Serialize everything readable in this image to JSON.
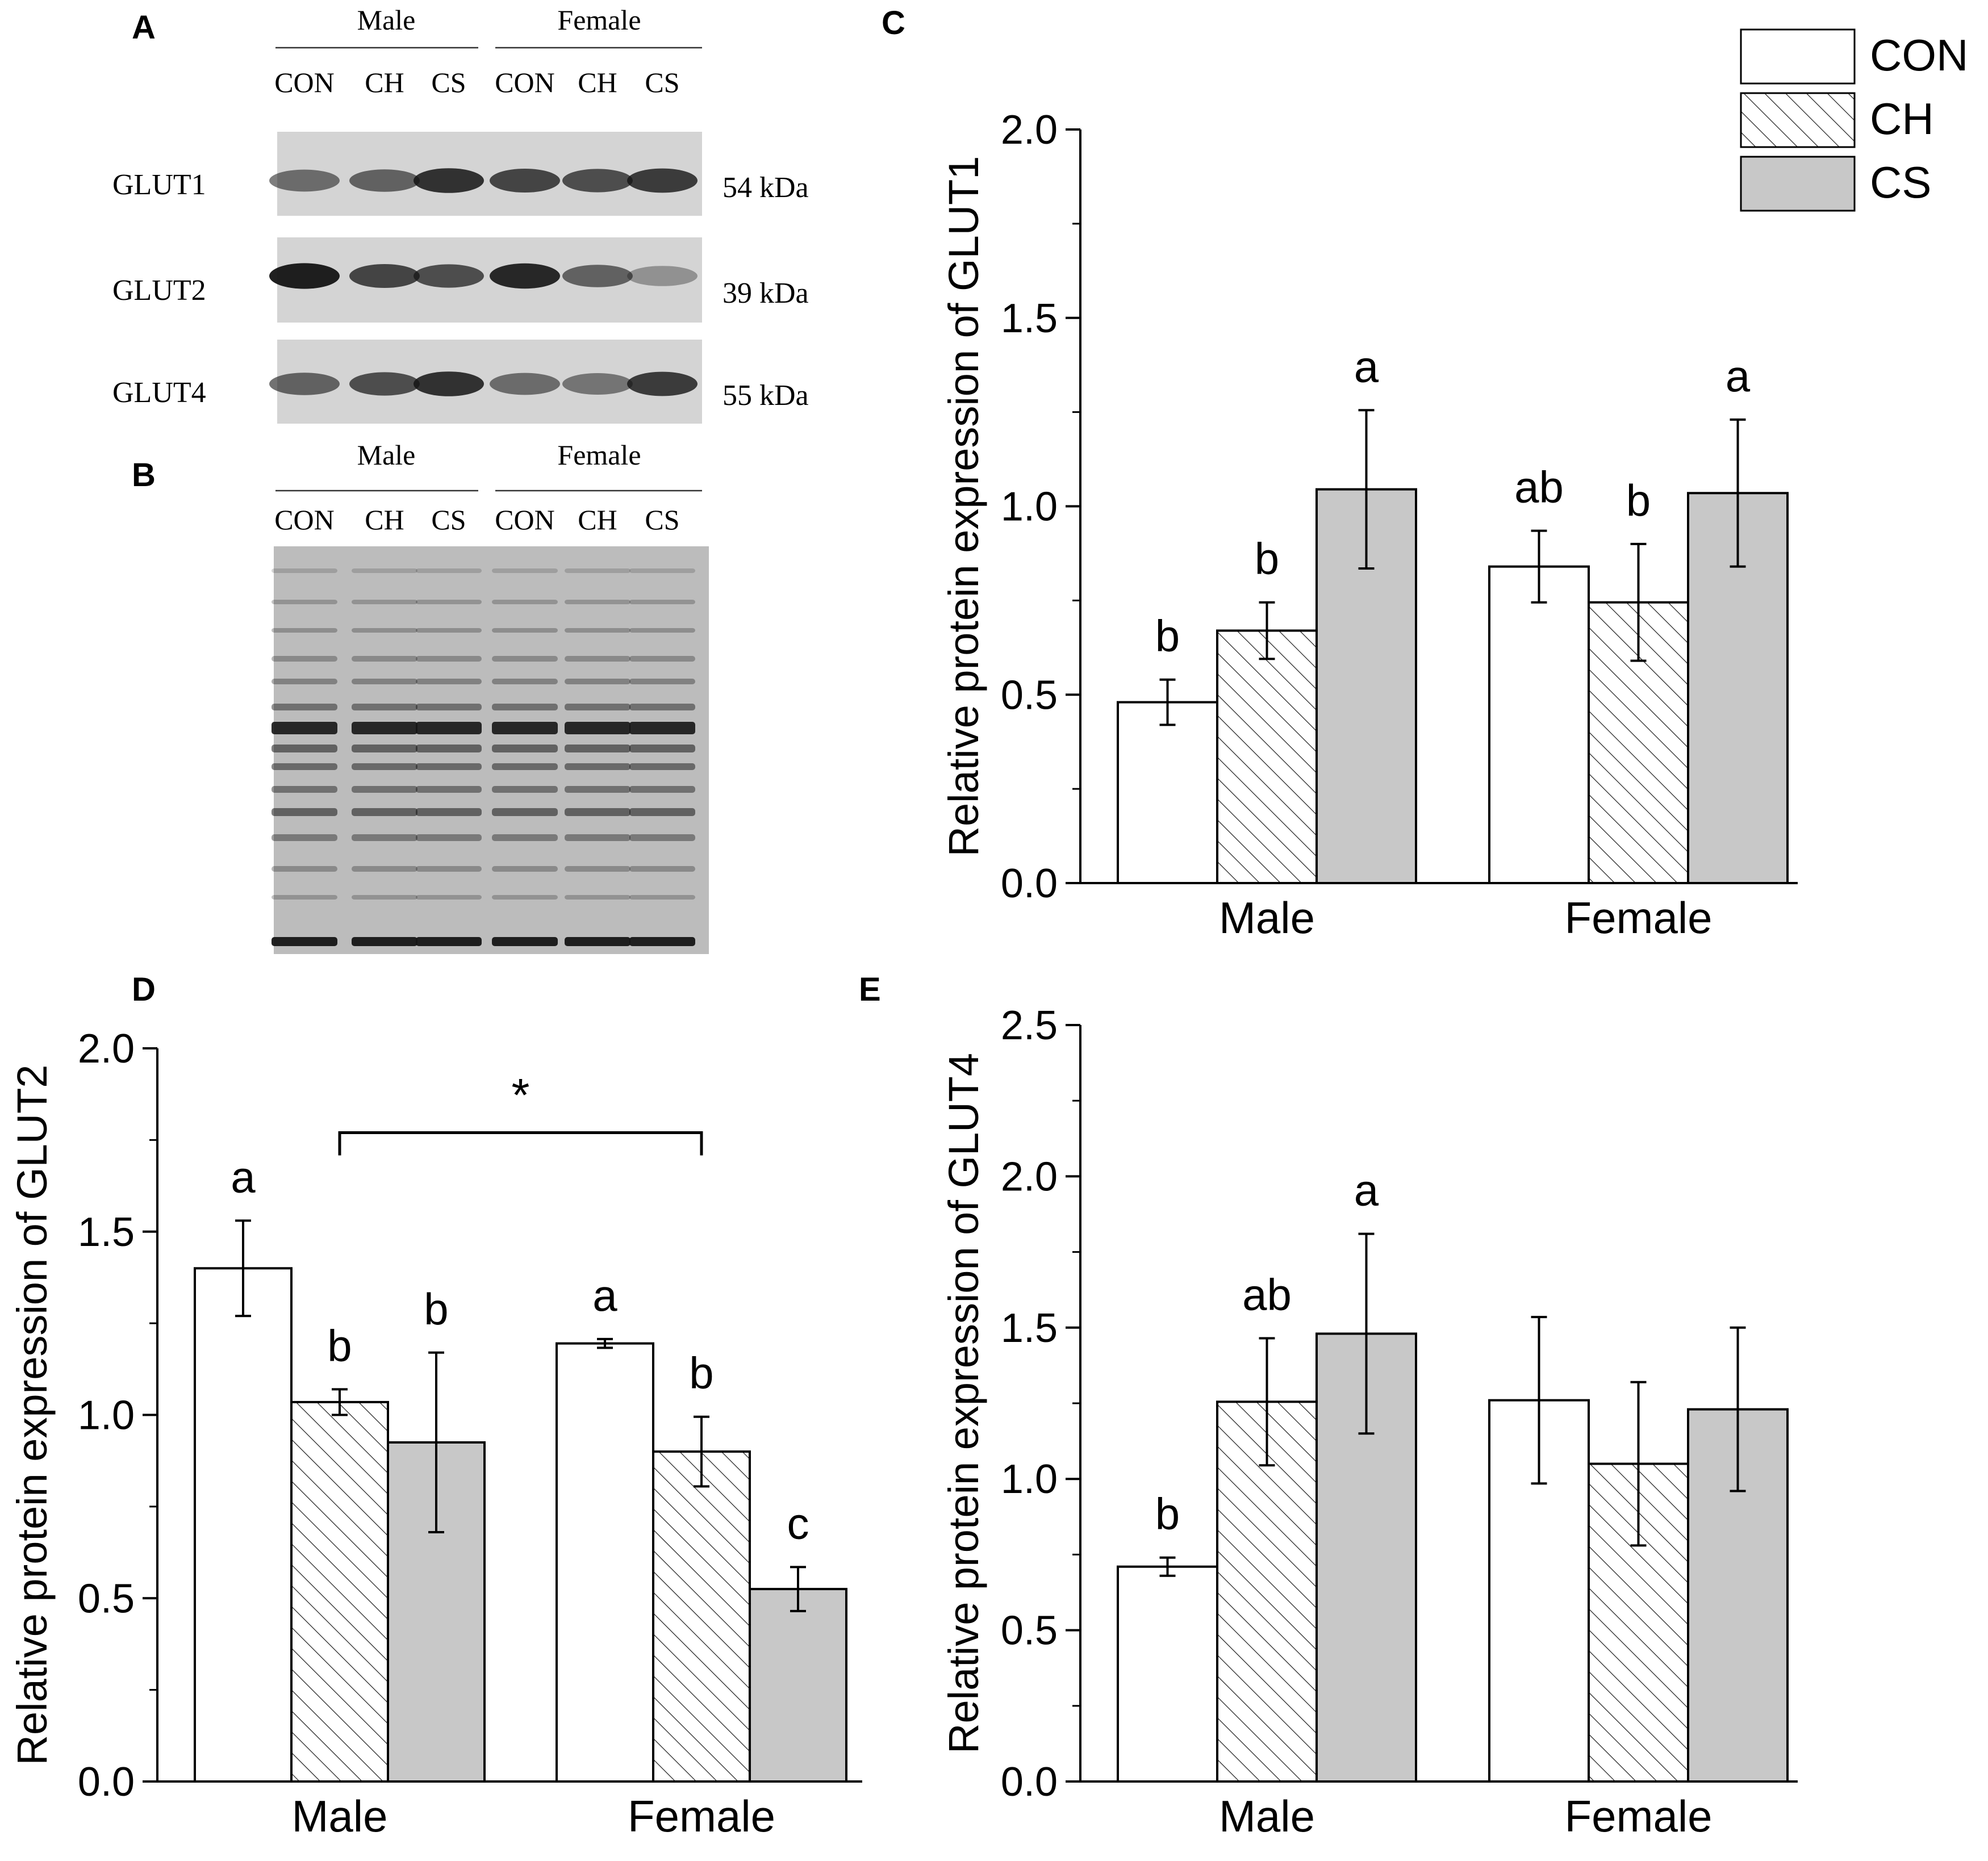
{
  "panel_labels": {
    "A": "A",
    "B": "B",
    "C": "C",
    "D": "D",
    "E": "E"
  },
  "blot": {
    "groups": [
      "Male",
      "Female"
    ],
    "lanes": [
      "CON",
      "CH",
      "CS",
      "CON",
      "CH",
      "CS"
    ],
    "proteins": [
      {
        "name": "GLUT1",
        "size": "54 kDa"
      },
      {
        "name": "GLUT2",
        "size": "39 kDa"
      },
      {
        "name": "GLUT4",
        "size": "55 kDa"
      }
    ]
  },
  "legend": {
    "entries": [
      {
        "label": "CON",
        "fill": "#ffffff",
        "pattern": "none"
      },
      {
        "label": "CH",
        "fill": "#ffffff",
        "pattern": "hatch"
      },
      {
        "label": "CS",
        "fill": "#c8c8c8",
        "pattern": "none"
      }
    ]
  },
  "chart_data": [
    {
      "panel": "C",
      "type": "bar",
      "categories": [
        "Male",
        "Female"
      ],
      "series": [
        {
          "name": "CON",
          "values": [
            0.48,
            0.84
          ],
          "errors": [
            0.06,
            0.095
          ],
          "letters": [
            "b",
            "ab"
          ]
        },
        {
          "name": "CH",
          "values": [
            0.67,
            0.745
          ],
          "errors": [
            0.075,
            0.155
          ],
          "letters": [
            "b",
            "b"
          ]
        },
        {
          "name": "CS",
          "values": [
            1.045,
            1.035
          ],
          "errors": [
            0.21,
            0.195
          ],
          "letters": [
            "a",
            "a"
          ]
        }
      ],
      "ylabel": "Relative protein expression of GLUT1",
      "ylim": [
        0,
        2.0
      ],
      "yticks": [
        "0.0",
        "0.5",
        "1.0",
        "1.5",
        "2.0"
      ],
      "legend": "top-right",
      "grid": false
    },
    {
      "panel": "D",
      "type": "bar",
      "categories": [
        "Male",
        "Female"
      ],
      "series": [
        {
          "name": "CON",
          "values": [
            1.4,
            1.195
          ],
          "errors": [
            0.13,
            0.012
          ],
          "letters": [
            "a",
            "a"
          ]
        },
        {
          "name": "CH",
          "values": [
            1.035,
            0.9
          ],
          "errors": [
            0.035,
            0.095
          ],
          "letters": [
            "b",
            "b"
          ]
        },
        {
          "name": "CS",
          "values": [
            0.925,
            0.525
          ],
          "errors": [
            0.245,
            0.06
          ],
          "letters": [
            "b",
            "c"
          ]
        }
      ],
      "ylabel": "Relative protein expression of GLUT2",
      "ylim": [
        0,
        2.0
      ],
      "yticks": [
        "0.0",
        "0.5",
        "1.0",
        "1.5",
        "2.0"
      ],
      "significance": {
        "symbol": "*",
        "y": 1.77
      },
      "grid": false
    },
    {
      "panel": "E",
      "type": "bar",
      "categories": [
        "Male",
        "Female"
      ],
      "series": [
        {
          "name": "CON",
          "values": [
            0.71,
            1.26
          ],
          "errors": [
            0.03,
            0.275
          ],
          "letters": [
            "b",
            ""
          ]
        },
        {
          "name": "CH",
          "values": [
            1.255,
            1.05
          ],
          "errors": [
            0.21,
            0.27
          ],
          "letters": [
            "ab",
            ""
          ]
        },
        {
          "name": "CS",
          "values": [
            1.48,
            1.23
          ],
          "errors": [
            0.33,
            0.27
          ],
          "letters": [
            "a",
            ""
          ]
        }
      ],
      "ylabel": "Relative protein expression of GLUT4",
      "ylim": [
        0,
        2.5
      ],
      "yticks": [
        "0.0",
        "0.5",
        "1.0",
        "1.5",
        "2.0",
        "2.5"
      ],
      "grid": false
    }
  ]
}
